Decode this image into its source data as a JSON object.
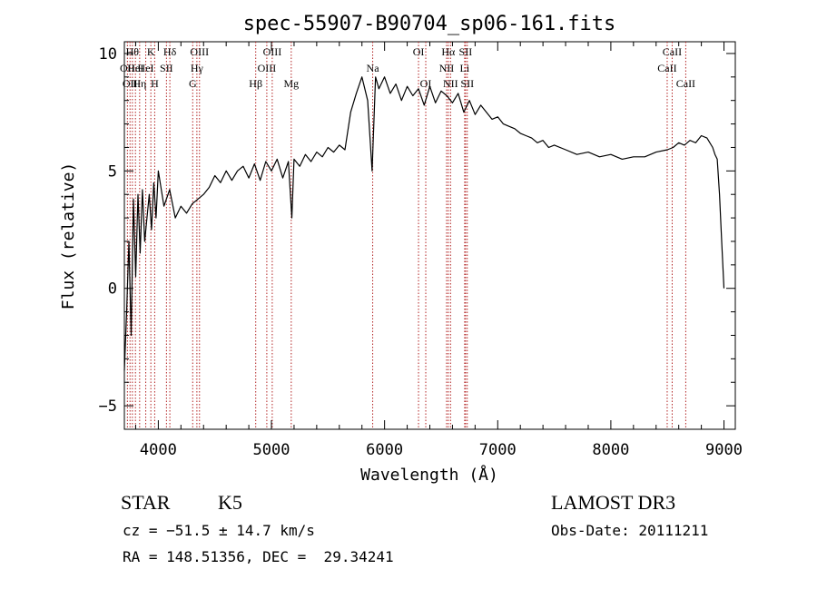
{
  "chart_data": {
    "type": "line",
    "title": "spec-55907-B90704_sp06-161.fits",
    "xlabel": "Wavelength (Å)",
    "ylabel": "Flux (relative)",
    "xlim": [
      3700,
      9100
    ],
    "ylim": [
      -6,
      10.5
    ],
    "x_ticks": [
      4000,
      5000,
      6000,
      7000,
      8000,
      9000
    ],
    "y_ticks": [
      -5,
      0,
      5,
      10
    ],
    "grid": false,
    "series": [
      {
        "color": "#000000",
        "x": [
          3700,
          3720,
          3740,
          3760,
          3780,
          3800,
          3820,
          3840,
          3860,
          3880,
          3900,
          3920,
          3940,
          3960,
          3980,
          4000,
          4050,
          4100,
          4150,
          4200,
          4250,
          4300,
          4350,
          4400,
          4450,
          4500,
          4550,
          4600,
          4650,
          4700,
          4750,
          4800,
          4850,
          4900,
          4950,
          5000,
          5050,
          5100,
          5150,
          5180,
          5200,
          5250,
          5300,
          5350,
          5400,
          5450,
          5500,
          5550,
          5600,
          5650,
          5700,
          5750,
          5800,
          5850,
          5890,
          5920,
          5950,
          6000,
          6050,
          6100,
          6150,
          6200,
          6250,
          6300,
          6350,
          6400,
          6450,
          6500,
          6550,
          6600,
          6650,
          6700,
          6750,
          6800,
          6850,
          6900,
          6950,
          7000,
          7050,
          7100,
          7150,
          7200,
          7250,
          7300,
          7350,
          7400,
          7450,
          7500,
          7600,
          7700,
          7800,
          7900,
          8000,
          8100,
          8200,
          8300,
          8400,
          8500,
          8550,
          8600,
          8650,
          8700,
          8750,
          8800,
          8850,
          8900,
          8920,
          8940,
          8960,
          8980,
          9000
        ],
        "values": [
          -3.5,
          -1.0,
          2.0,
          -2.0,
          3.8,
          0.5,
          4.0,
          1.5,
          4.2,
          2.0,
          3.0,
          4.0,
          2.5,
          4.5,
          3.0,
          5.0,
          3.5,
          4.2,
          3.0,
          3.5,
          3.2,
          3.6,
          3.8,
          4.0,
          4.3,
          4.8,
          4.5,
          5.0,
          4.6,
          5.0,
          5.2,
          4.7,
          5.3,
          4.6,
          5.4,
          5.0,
          5.5,
          4.7,
          5.4,
          3.0,
          5.5,
          5.2,
          5.7,
          5.4,
          5.8,
          5.6,
          6.0,
          5.8,
          6.1,
          5.9,
          7.5,
          8.3,
          9.0,
          8.0,
          5.0,
          9.0,
          8.5,
          9.0,
          8.3,
          8.7,
          8.0,
          8.6,
          8.2,
          8.5,
          7.8,
          8.6,
          7.9,
          8.4,
          8.2,
          7.9,
          8.3,
          7.5,
          8.0,
          7.4,
          7.8,
          7.5,
          7.2,
          7.3,
          7.0,
          6.9,
          6.8,
          6.6,
          6.5,
          6.4,
          6.2,
          6.3,
          6.0,
          6.1,
          5.9,
          5.7,
          5.8,
          5.6,
          5.7,
          5.5,
          5.6,
          5.6,
          5.8,
          5.9,
          6.0,
          6.2,
          6.1,
          6.3,
          6.2,
          6.5,
          6.4,
          6.0,
          5.7,
          5.5,
          4.0,
          2.0,
          0.0
        ]
      }
    ],
    "line_markers": [
      {
        "wave": 3727,
        "label": "OII",
        "row": 1
      },
      {
        "wave": 3750,
        "label": "OII",
        "row": 2
      },
      {
        "wave": 3771,
        "label": "Hθ",
        "row": 0
      },
      {
        "wave": 3798,
        "label": "HeI",
        "row": 1
      },
      {
        "wave": 3835,
        "label": "Hη",
        "row": 2
      },
      {
        "wave": 3889,
        "label": "HeI",
        "row": 1
      },
      {
        "wave": 3934,
        "label": "K",
        "row": 0
      },
      {
        "wave": 3968,
        "label": "H",
        "row": 2
      },
      {
        "wave": 4072,
        "label": "SII",
        "row": 1
      },
      {
        "wave": 4102,
        "label": "Hδ",
        "row": 0
      },
      {
        "wave": 4304,
        "label": "G",
        "row": 2
      },
      {
        "wave": 4341,
        "label": "Hγ",
        "row": 1
      },
      {
        "wave": 4364,
        "label": "OIII",
        "row": 0
      },
      {
        "wave": 4861,
        "label": "Hβ",
        "row": 2
      },
      {
        "wave": 4959,
        "label": "OIII",
        "row": 1
      },
      {
        "wave": 5007,
        "label": "OIII",
        "row": 0
      },
      {
        "wave": 5175,
        "label": "Mg",
        "row": 2
      },
      {
        "wave": 5895,
        "label": "Na",
        "row": 1
      },
      {
        "wave": 6300,
        "label": "OI",
        "row": 0
      },
      {
        "wave": 6364,
        "label": "OI",
        "row": 2
      },
      {
        "wave": 6548,
        "label": "NII",
        "row": 1
      },
      {
        "wave": 6563,
        "label": "Hα",
        "row": 0
      },
      {
        "wave": 6583,
        "label": "NII",
        "row": 2
      },
      {
        "wave": 6716,
        "label": "SII",
        "row": 0
      },
      {
        "wave": 6708,
        "label": "Li",
        "row": 1
      },
      {
        "wave": 6731,
        "label": "SII",
        "row": 2
      },
      {
        "wave": 8498,
        "label": "CaII",
        "row": 1
      },
      {
        "wave": 8542,
        "label": "CaII",
        "row": 0
      },
      {
        "wave": 8662,
        "label": "CaII",
        "row": 2
      }
    ],
    "annotations": {
      "object_class": "STAR",
      "subclass": "K5",
      "survey": "LAMOST DR3",
      "redshift_line": "cz = −51.5 ± 14.7 km/s",
      "obs_date": "Obs-Date: 20111211",
      "coords": "RA = 148.51356, DEC =  29.34241"
    },
    "colors": {
      "spectrum": "#000000",
      "marker_line": "#b22222",
      "axis": "#000000"
    }
  }
}
